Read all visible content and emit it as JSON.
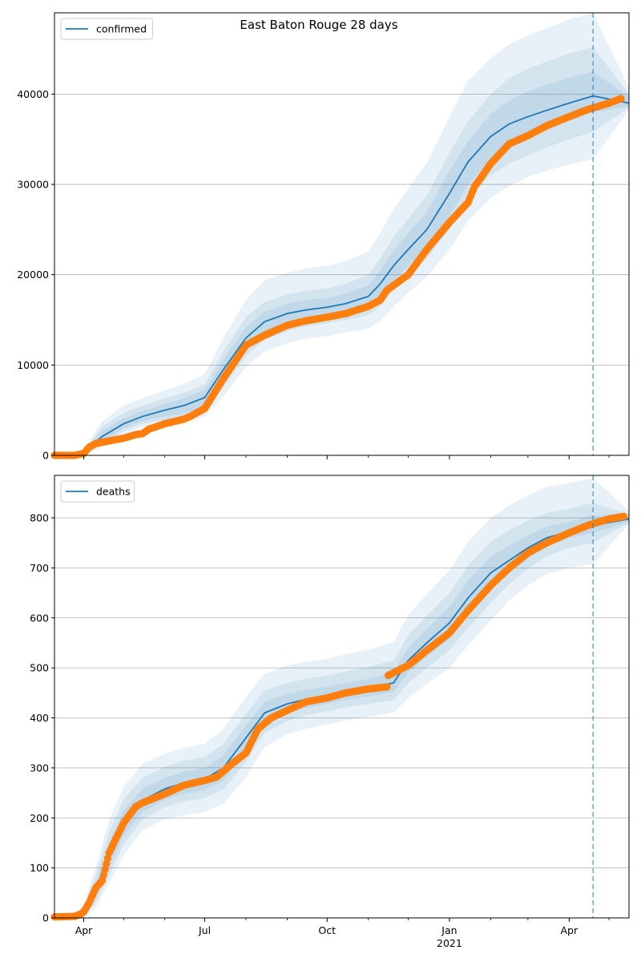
{
  "title": "East Baton Rouge 28 days",
  "colors": {
    "fit": "#1f77b4",
    "observed": "#ff7f0e",
    "band": "#1f77b4",
    "grid": "#b0b0b0",
    "vline": "#1f77b4"
  },
  "x_axis": {
    "start": "2020-03-10",
    "end": "2021-05-16",
    "major_ticks": [
      {
        "date": "2020-04-01",
        "label": "Apr",
        "sublabel": ""
      },
      {
        "date": "2020-07-01",
        "label": "Jul",
        "sublabel": ""
      },
      {
        "date": "2020-10-01",
        "label": "Oct",
        "sublabel": ""
      },
      {
        "date": "2021-01-01",
        "label": "Jan",
        "sublabel": "2021"
      },
      {
        "date": "2021-04-01",
        "label": "Apr",
        "sublabel": ""
      }
    ],
    "minor_ticks": [
      "2020-05-01",
      "2020-06-01",
      "2020-08-01",
      "2020-09-01",
      "2020-11-01",
      "2020-12-01",
      "2021-02-01",
      "2021-03-01",
      "2021-05-01"
    ]
  },
  "forecast_start": "2021-04-19",
  "chart_data": [
    {
      "type": "line",
      "legend": "confirmed",
      "legend_position": "upper-left",
      "ylim": [
        0,
        49000
      ],
      "yticks": [
        0,
        10000,
        20000,
        30000,
        40000
      ],
      "grid": "horizontal",
      "fit": {
        "x": [
          "2020-03-10",
          "2020-03-31",
          "2020-04-15",
          "2020-05-01",
          "2020-05-15",
          "2020-06-01",
          "2020-06-15",
          "2020-07-01",
          "2020-07-15",
          "2020-08-01",
          "2020-08-15",
          "2020-09-01",
          "2020-09-15",
          "2020-10-01",
          "2020-10-15",
          "2020-11-01",
          "2020-11-10",
          "2020-11-20",
          "2020-12-01",
          "2020-12-15",
          "2021-01-01",
          "2021-01-15",
          "2021-02-01",
          "2021-02-15",
          "2021-03-01",
          "2021-03-15",
          "2021-04-01",
          "2021-04-19",
          "2021-05-16"
        ],
        "y": [
          0,
          200,
          2100,
          3500,
          4300,
          5000,
          5500,
          6400,
          9500,
          13000,
          14800,
          15700,
          16100,
          16400,
          16800,
          17600,
          19000,
          21000,
          22800,
          25000,
          29000,
          32500,
          35300,
          36700,
          37500,
          38200,
          39000,
          39800,
          39000
        ],
        "bands": [
          {
            "lower": [
              0,
              100,
              1500,
              3000,
              3800,
              4300,
              4600,
              5400,
              8200,
              11800,
              13600,
              14500,
              15000,
              15300,
              15700,
              16300,
              17400,
              19300,
              21000,
              23000,
              26500,
              30000,
              32700,
              34000,
              35000,
              36000,
              37000,
              38000,
              38600
            ],
            "upper": [
              0,
              300,
              2700,
              4100,
              4900,
              5700,
              6300,
              7200,
              10600,
              14200,
              15900,
              16800,
              17200,
              17400,
              17900,
              18800,
              20500,
              22700,
              24600,
              27000,
              31500,
              34800,
              37800,
              39300,
              40300,
              41000,
              41800,
              42500,
              39700
            ]
          },
          {
            "lower": [
              0,
              80,
              1200,
              2700,
              3500,
              3900,
              4200,
              4900,
              7500,
              11000,
              12800,
              13700,
              14300,
              14600,
              15000,
              15500,
              16500,
              18300,
              19800,
              21800,
              25000,
              28500,
              31000,
              32300,
              33200,
              34100,
              35000,
              35800,
              38500
            ],
            "upper": [
              0,
              400,
              3200,
              4700,
              5500,
              6300,
              6900,
              7900,
              11500,
              15300,
              17000,
              17800,
              18200,
              18500,
              19000,
              20000,
              21800,
              24200,
              26200,
              28800,
              33500,
              37000,
              40000,
              41800,
              42800,
              43600,
              44500,
              45200,
              40000
            ]
          },
          {
            "lower": [
              0,
              50,
              900,
              2300,
              3100,
              3500,
              3700,
              4300,
              6500,
              9800,
              11500,
              12400,
              12900,
              13200,
              13600,
              14000,
              14900,
              16500,
              18000,
              19800,
              22800,
              26000,
              28500,
              29800,
              30800,
              31500,
              32200,
              32800,
              38200
            ],
            "upper": [
              0,
              500,
              3800,
              5500,
              6300,
              7200,
              7900,
              9000,
              13000,
              17200,
              19400,
              20200,
              20700,
              21000,
              21500,
              22600,
              24600,
              27300,
              29500,
              32400,
              37500,
              41500,
              44000,
              45500,
              46500,
              47300,
              48300,
              49000,
              40700
            ]
          }
        ]
      },
      "observed": {
        "x": [
          "2020-03-10",
          "2020-03-25",
          "2020-04-01",
          "2020-04-05",
          "2020-04-10",
          "2020-04-20",
          "2020-05-01",
          "2020-05-10",
          "2020-05-15",
          "2020-05-20",
          "2020-06-01",
          "2020-06-15",
          "2020-06-20",
          "2020-07-01",
          "2020-07-15",
          "2020-08-01",
          "2020-08-15",
          "2020-09-01",
          "2020-09-15",
          "2020-10-01",
          "2020-10-15",
          "2020-11-01",
          "2020-11-10",
          "2020-11-15",
          "2020-12-01",
          "2020-12-15",
          "2021-01-01",
          "2021-01-15",
          "2021-01-20",
          "2021-01-25",
          "2021-02-01",
          "2021-02-15",
          "2021-03-01",
          "2021-03-15",
          "2021-04-01",
          "2021-04-15",
          "2021-05-01",
          "2021-05-10"
        ],
        "y": [
          0,
          0,
          200,
          900,
          1300,
          1600,
          1900,
          2300,
          2400,
          2900,
          3500,
          4000,
          4300,
          5200,
          8500,
          12200,
          13300,
          14400,
          14900,
          15300,
          15700,
          16500,
          17200,
          18300,
          20000,
          22800,
          25800,
          28000,
          29800,
          30800,
          32300,
          34500,
          35400,
          36500,
          37500,
          38300,
          39000,
          39500
        ]
      }
    },
    {
      "type": "line",
      "legend": "deaths",
      "legend_position": "upper-left",
      "ylim": [
        0,
        885
      ],
      "yticks": [
        0,
        100,
        200,
        300,
        400,
        500,
        600,
        700,
        800
      ],
      "grid": "horizontal",
      "fit": {
        "x": [
          "2020-03-10",
          "2020-03-25",
          "2020-04-01",
          "2020-04-10",
          "2020-04-20",
          "2020-05-01",
          "2020-05-15",
          "2020-06-01",
          "2020-06-15",
          "2020-07-01",
          "2020-07-15",
          "2020-08-01",
          "2020-08-15",
          "2020-09-01",
          "2020-09-15",
          "2020-10-01",
          "2020-10-15",
          "2020-11-01",
          "2020-11-20",
          "2020-12-01",
          "2020-12-15",
          "2021-01-01",
          "2021-01-15",
          "2021-02-01",
          "2021-02-15",
          "2021-03-01",
          "2021-03-15",
          "2021-04-01",
          "2021-04-19",
          "2021-05-16"
        ],
        "y": [
          0,
          3,
          12,
          55,
          125,
          190,
          235,
          258,
          270,
          278,
          300,
          360,
          410,
          428,
          437,
          444,
          452,
          460,
          470,
          515,
          550,
          590,
          640,
          690,
          715,
          740,
          760,
          773,
          785,
          798
        ],
        "bands": [
          {
            "lower": [
              0,
              2,
              8,
              40,
              100,
              165,
              212,
              237,
              248,
              256,
              275,
              333,
              388,
              410,
              420,
              428,
              436,
              443,
              452,
              490,
              522,
              558,
              605,
              655,
              690,
              718,
              742,
              760,
              770,
              793
            ],
            "upper": [
              0,
              5,
              17,
              70,
              150,
              215,
              258,
              280,
              292,
              300,
              325,
              385,
              432,
              448,
              456,
              462,
              470,
              478,
              492,
              540,
              578,
              622,
              675,
              722,
              745,
              765,
              783,
              792,
              805,
              803
            ]
          },
          {
            "lower": [
              0,
              1,
              6,
              30,
              85,
              148,
              196,
              222,
              232,
              240,
              257,
              313,
              370,
              394,
              405,
              413,
              421,
              428,
              435,
              470,
              500,
              535,
              580,
              630,
              668,
              698,
              723,
              740,
              750,
              790
            ],
            "upper": [
              0,
              6,
              21,
              85,
              170,
              237,
              280,
              302,
              314,
              322,
              348,
              408,
              455,
              470,
              478,
              485,
              493,
              502,
              515,
              565,
              605,
              650,
              705,
              752,
              775,
              795,
              810,
              818,
              830,
              808
            ]
          },
          {
            "lower": [
              0,
              1,
              4,
              20,
              70,
              125,
              175,
              197,
              205,
              212,
              228,
              282,
              342,
              367,
              378,
              387,
              395,
              402,
              410,
              440,
              468,
              500,
              545,
              595,
              635,
              665,
              688,
              700,
              708,
              787
            ],
            "upper": [
              0,
              8,
              26,
              100,
              195,
              262,
              308,
              328,
              340,
              348,
              378,
              442,
              488,
              505,
              512,
              518,
              527,
              537,
              552,
              605,
              648,
              695,
              752,
              800,
              825,
              845,
              862,
              870,
              880,
              813
            ]
          }
        ]
      },
      "observed": {
        "x": [
          "2020-03-10",
          "2020-03-25",
          "2020-03-30",
          "2020-04-01",
          "2020-04-05",
          "2020-04-10",
          "2020-04-15",
          "2020-04-20",
          "2020-05-01",
          "2020-05-10",
          "2020-05-15",
          "2020-06-01",
          "2020-06-15",
          "2020-07-01",
          "2020-07-10",
          "2020-07-20",
          "2020-08-01",
          "2020-08-10",
          "2020-08-20",
          "2020-09-01",
          "2020-09-15",
          "2020-10-01",
          "2020-10-15",
          "2020-11-01",
          "2020-11-15",
          "2020-11-16",
          "2020-12-01",
          "2020-12-15",
          "2021-01-01",
          "2021-01-15",
          "2021-02-01",
          "2021-02-15",
          "2021-03-01",
          "2021-03-15",
          "2021-04-01",
          "2021-04-15",
          "2021-05-01",
          "2021-05-12"
        ],
        "y": [
          2,
          3,
          8,
          12,
          30,
          60,
          75,
          130,
          190,
          222,
          230,
          248,
          265,
          275,
          282,
          305,
          330,
          378,
          400,
          415,
          432,
          440,
          450,
          458,
          462,
          485,
          505,
          535,
          570,
          615,
          665,
          700,
          730,
          750,
          770,
          785,
          798,
          803
        ]
      }
    }
  ]
}
